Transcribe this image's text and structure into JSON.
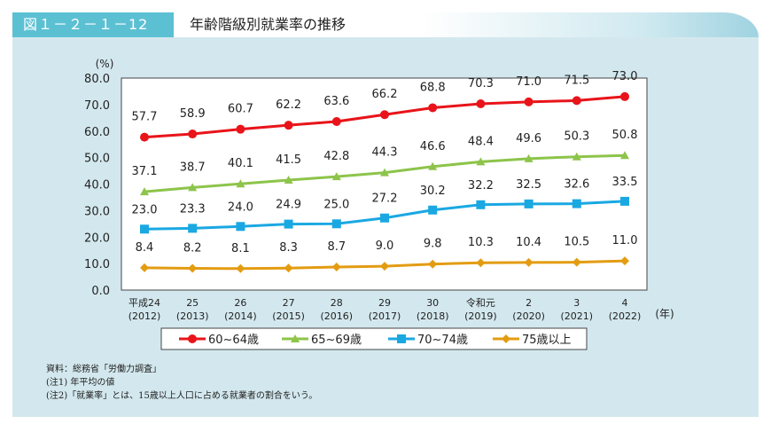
{
  "header": {
    "figure_no": "図１－２－１－12",
    "title": "年齢階級別就業率の推移"
  },
  "chart_data": {
    "type": "line",
    "title": "年齢階級別就業率の推移",
    "ylabel": "(%)",
    "xlabel": "(年)",
    "ylim": [
      0,
      80
    ],
    "yticks": [
      "0.0",
      "10.0",
      "20.0",
      "30.0",
      "40.0",
      "50.0",
      "60.0",
      "70.0",
      "80.0"
    ],
    "grid": false,
    "legend": "bottom",
    "categories": [
      [
        "平成24",
        "(2012)"
      ],
      [
        "25",
        "(2013)"
      ],
      [
        "26",
        "(2014)"
      ],
      [
        "27",
        "(2015)"
      ],
      [
        "28",
        "(2016)"
      ],
      [
        "29",
        "(2017)"
      ],
      [
        "30",
        "(2018)"
      ],
      [
        "令和元",
        "(2019)"
      ],
      [
        "2",
        "(2020)"
      ],
      [
        "3",
        "(2021)"
      ],
      [
        "4",
        "(2022)"
      ]
    ],
    "series": [
      {
        "name": "60~64歳",
        "color": "#e8141a",
        "marker": "circle",
        "values": [
          57.7,
          58.9,
          60.7,
          62.2,
          63.6,
          66.2,
          68.8,
          70.3,
          71.0,
          71.5,
          73.0
        ]
      },
      {
        "name": "65~69歳",
        "color": "#8dc44a",
        "marker": "triangle",
        "values": [
          37.1,
          38.7,
          40.1,
          41.5,
          42.8,
          44.3,
          46.6,
          48.4,
          49.6,
          50.3,
          50.8
        ]
      },
      {
        "name": "70~74歳",
        "color": "#1aa8e2",
        "marker": "square",
        "values": [
          23.0,
          23.3,
          24.0,
          24.9,
          25.0,
          27.2,
          30.2,
          32.2,
          32.5,
          32.6,
          33.5
        ]
      },
      {
        "name": "75歳以上",
        "color": "#e39c12",
        "marker": "diamond",
        "values": [
          8.4,
          8.2,
          8.1,
          8.3,
          8.7,
          9.0,
          9.8,
          10.3,
          10.4,
          10.5,
          11.0
        ]
      }
    ]
  },
  "notes": [
    "資料：総務省「労働力調査」",
    "(注1) 年平均の値",
    "(注2)「就業率」とは、15歳以上人口に占める就業者の割合をいう。"
  ]
}
